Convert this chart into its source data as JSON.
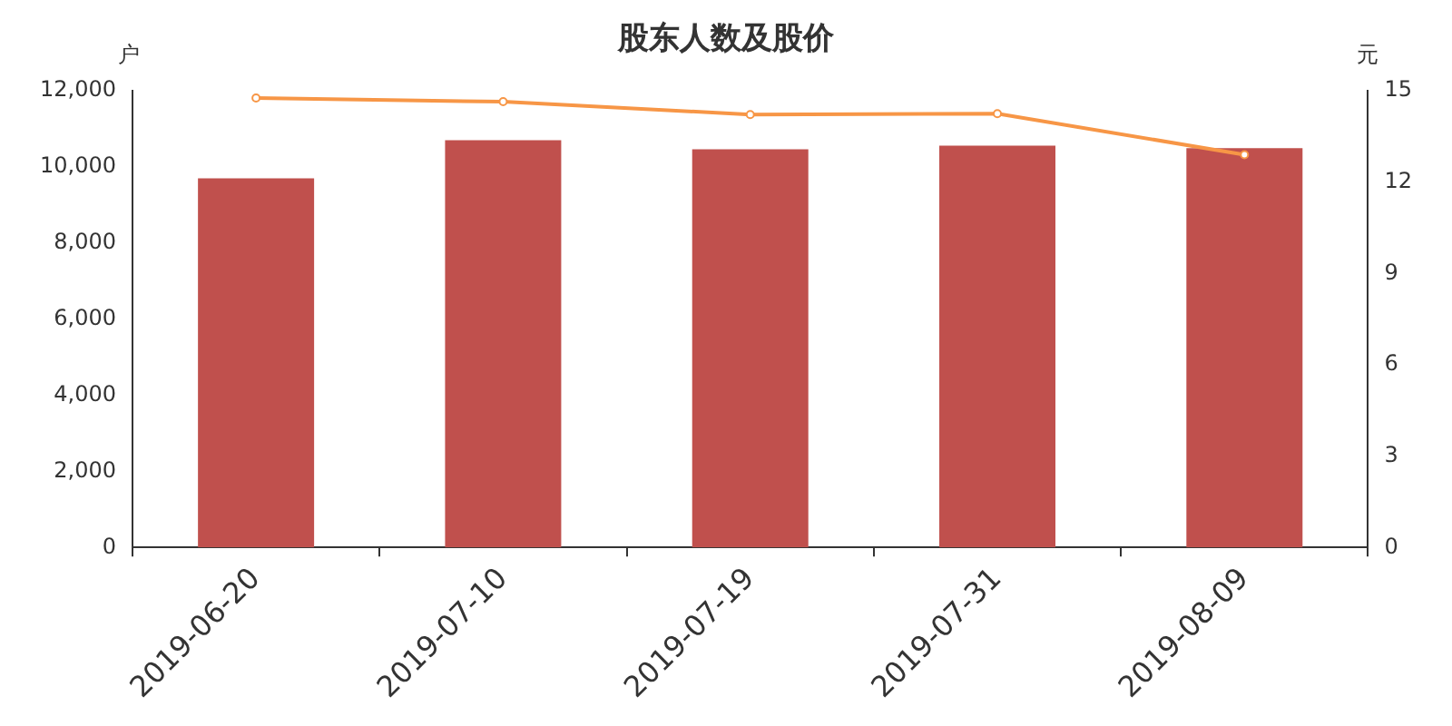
{
  "chart_data": {
    "type": "bar",
    "title": "股东人数及股价",
    "ylabel": "户",
    "y2label": "元",
    "categories": [
      "2019-06-20",
      "2019-07-10",
      "2019-07-19",
      "2019-07-31",
      "2019-08-09"
    ],
    "series": [
      {
        "color": "#c0504d",
        "values": [
          9700,
          10700,
          10460,
          10560,
          10490
        ]
      },
      {
        "type": "line",
        "axis": "y2",
        "color": "#f79646",
        "marker": "circle",
        "values": [
          14.76,
          14.64,
          14.22,
          14.25,
          12.9
        ]
      }
    ],
    "ylim": [
      0,
      12000
    ],
    "yticks": [
      {
        "value": 0,
        "label": "0"
      },
      {
        "value": 2000,
        "label": "2,000"
      },
      {
        "value": 4000,
        "label": "4,000"
      },
      {
        "value": 6000,
        "label": "6,000"
      },
      {
        "value": 8000,
        "label": "8,000"
      },
      {
        "value": 10000,
        "label": "10,000"
      },
      {
        "value": 12000,
        "label": "12,000"
      }
    ],
    "y2lim": [
      0,
      15
    ],
    "y2ticks": [
      0,
      3,
      6,
      9,
      12,
      15
    ],
    "grid": false,
    "legend": false
  }
}
